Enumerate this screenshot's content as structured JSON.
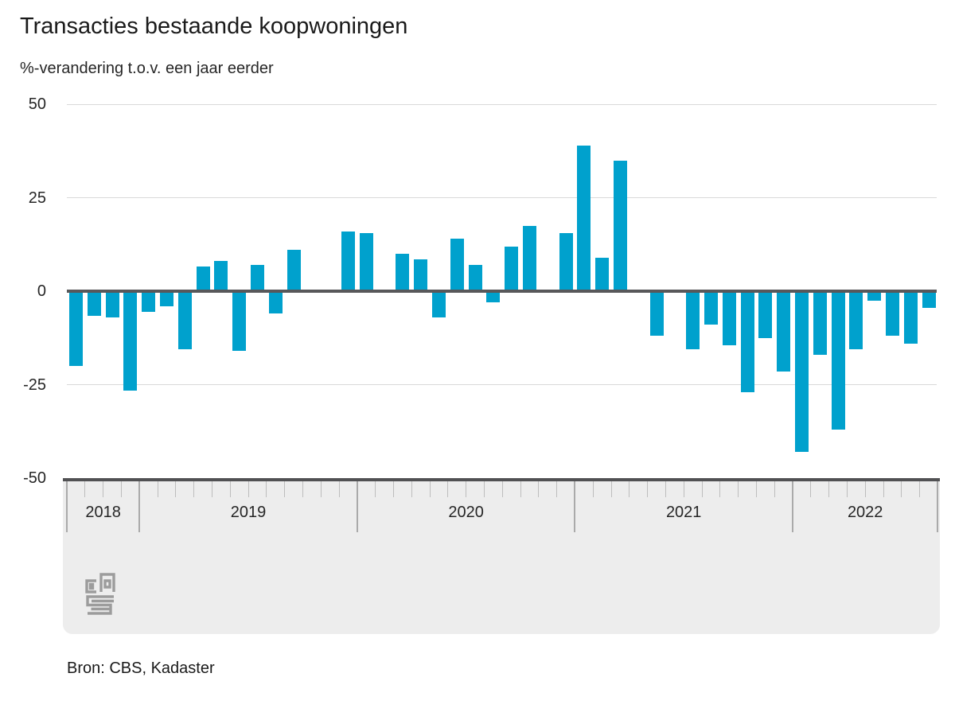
{
  "title": "Transacties bestaande koopwoningen",
  "subtitle": "%-verandering t.o.v. een jaar eerder",
  "source_note": "Bron: CBS, Kadaster",
  "colors": {
    "bar": "#00a1cd",
    "gridline": "#d9d9d9",
    "zero_line": "#58585a",
    "axis_band_bg": "#ededed",
    "axis_band_border": "#515153",
    "month_tick": "#bdbdbd",
    "year_separator": "#aaaaaa",
    "text": "#1a1a1a",
    "logo_gray": "#9c9c9c"
  },
  "chart_data": {
    "type": "bar",
    "title": "Transacties bestaande koopwoningen",
    "subtitle": "%-verandering t.o.v. een jaar eerder",
    "unit": "% year-over-year change",
    "ylim": [
      -50,
      50
    ],
    "yticks": [
      "50",
      "25",
      "0",
      "-25",
      "-50"
    ],
    "grid": "horizontal",
    "legend": "none",
    "x_years": [
      {
        "label": "2018",
        "months": 4
      },
      {
        "label": "2019",
        "months": 12
      },
      {
        "label": "2020",
        "months": 12
      },
      {
        "label": "2021",
        "months": 12
      },
      {
        "label": "2022",
        "months": 8
      }
    ],
    "x": [
      "2018-09",
      "2018-10",
      "2018-11",
      "2018-12",
      "2019-01",
      "2019-02",
      "2019-03",
      "2019-04",
      "2019-05",
      "2019-06",
      "2019-07",
      "2019-08",
      "2019-09",
      "2019-10",
      "2019-11",
      "2019-12",
      "2020-01",
      "2020-02",
      "2020-03",
      "2020-04",
      "2020-05",
      "2020-06",
      "2020-07",
      "2020-08",
      "2020-09",
      "2020-10",
      "2020-11",
      "2020-12",
      "2021-01",
      "2021-02",
      "2021-03",
      "2021-04",
      "2021-05",
      "2021-06",
      "2021-07",
      "2021-08",
      "2021-09",
      "2021-10",
      "2021-11",
      "2021-12",
      "2022-01",
      "2022-02",
      "2022-03",
      "2022-04",
      "2022-05",
      "2022-06",
      "2022-07",
      "2022-08"
    ],
    "values": [
      -20,
      -6.5,
      -7,
      -26.5,
      -5.5,
      -4,
      -15.5,
      6.5,
      8,
      -16,
      7,
      -6,
      11,
      0,
      0,
      16,
      15.5,
      0,
      10,
      8.5,
      -7,
      14,
      7,
      -3,
      12,
      17.5,
      0.5,
      15.5,
      39,
      9,
      35,
      0.5,
      -12,
      0,
      -15.5,
      -9,
      -14.5,
      -27,
      -12.5,
      -21.5,
      -43,
      -17,
      -37,
      -15.5,
      -2.5,
      -12,
      -14,
      -4.5
    ]
  }
}
